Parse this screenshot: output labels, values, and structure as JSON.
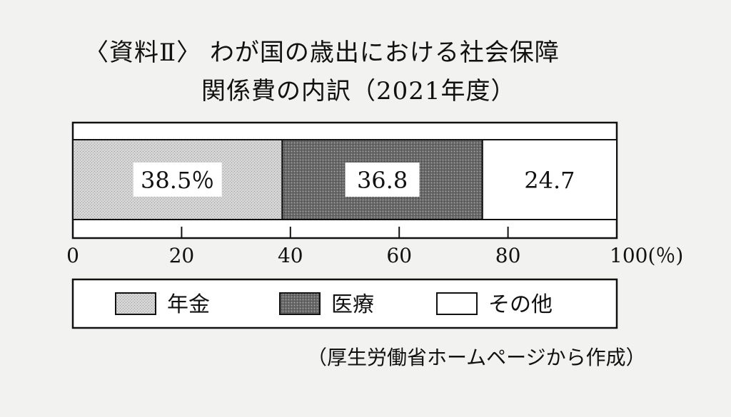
{
  "chart_data": {
    "type": "bar",
    "stacked": true,
    "orientation": "horizontal",
    "title_line1": "〈資料Ⅱ〉 わが国の歳出における社会保障",
    "title_line2": "関係費の内訳（2021年度）",
    "series": [
      {
        "name": "年金",
        "value": 38.5,
        "label": "38.5％",
        "color": "#c8c8c8"
      },
      {
        "name": "医療",
        "value": 36.8,
        "label": "36.8",
        "color": "#7a7a7a"
      },
      {
        "name": "その他",
        "value": 24.7,
        "label": "24.7",
        "color": "#ffffff"
      }
    ],
    "xlim": [
      0,
      100
    ],
    "ticks": [
      {
        "value": 0,
        "label": "0"
      },
      {
        "value": 20,
        "label": "20"
      },
      {
        "value": 40,
        "label": "40"
      },
      {
        "value": 60,
        "label": "60"
      },
      {
        "value": 80,
        "label": "80"
      },
      {
        "value": 100,
        "label": "100(％)"
      }
    ],
    "legend_position": "bottom",
    "source": "（厚生労働省ホームページから作成）"
  }
}
